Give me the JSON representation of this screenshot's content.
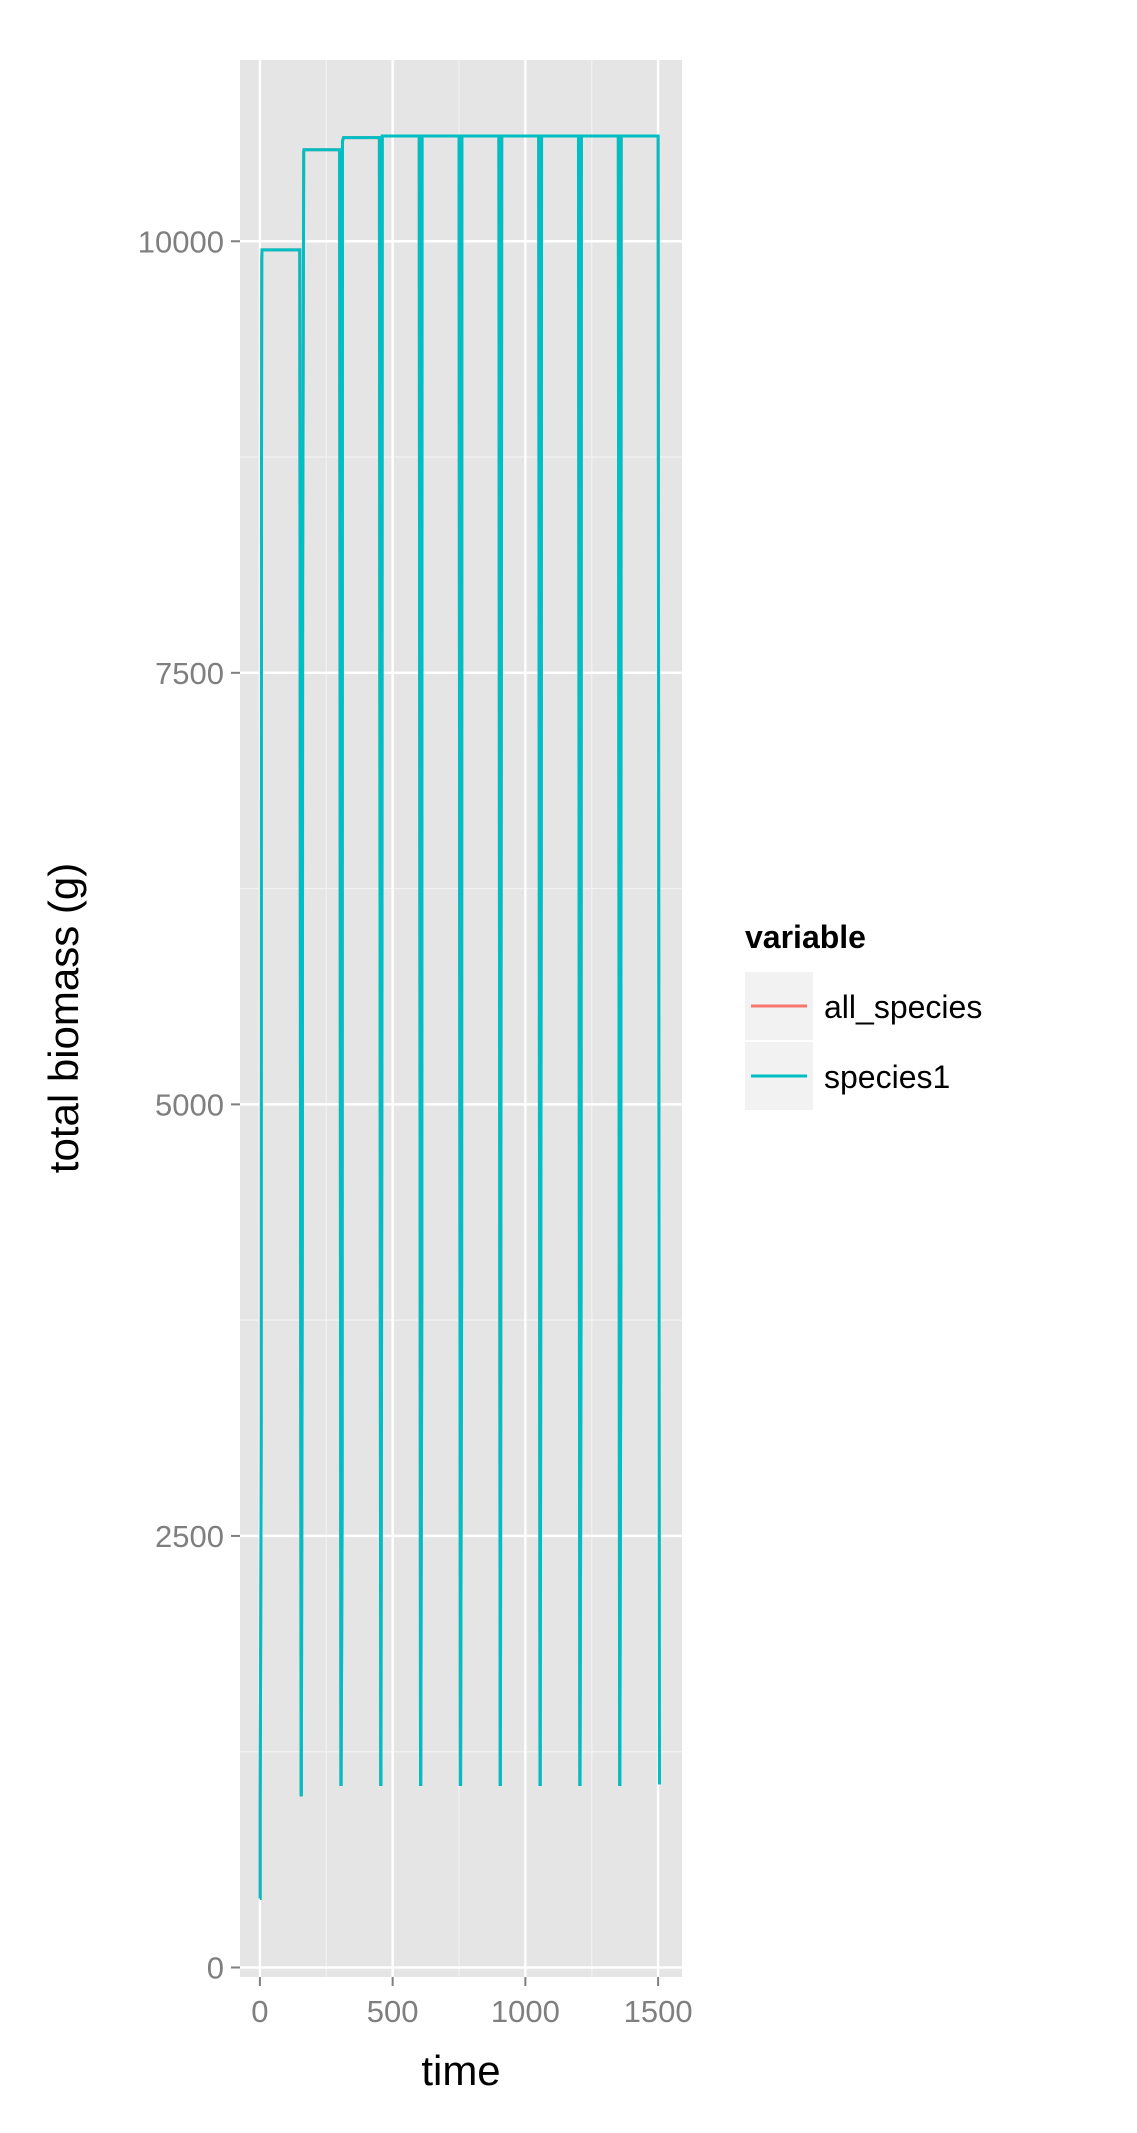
{
  "chart_data": {
    "type": "line",
    "xlabel": "time",
    "ylabel": "total biomass (g)",
    "xlim": [
      -75,
      1590
    ],
    "ylim": [
      -55,
      11050
    ],
    "x_ticks": [
      0,
      500,
      1000,
      1500
    ],
    "x_tick_labels": [
      "0",
      "500",
      "1000",
      "1500"
    ],
    "y_ticks": [
      0,
      2500,
      5000,
      7500,
      10000
    ],
    "y_tick_labels": [
      "0",
      "2500",
      "5000",
      "7500",
      "10000"
    ],
    "grid": true,
    "legend_position": "right",
    "legend": {
      "title": "variable",
      "items": [
        {
          "label": "all_species",
          "color": "#F8766D"
        },
        {
          "label": "species1",
          "color": "#00BFC4"
        }
      ]
    },
    "series": [
      {
        "name": "all_species",
        "color": "#F8766D",
        "x": [
          0,
          1,
          1,
          5,
          6,
          7,
          8,
          150,
          155,
          156,
          160,
          161,
          165,
          166,
          170,
          300,
          305,
          306,
          310,
          311,
          315,
          450,
          455,
          456,
          460,
          461,
          465,
          600,
          605,
          606,
          610,
          611,
          615,
          750,
          755,
          756,
          760,
          761,
          765,
          900,
          905,
          906,
          910,
          911,
          915,
          1050,
          1055,
          1056,
          1060,
          1061,
          1065,
          1200,
          1205,
          1206,
          1210,
          1211,
          1215,
          1350,
          1355,
          1356,
          1360,
          1361,
          1365,
          1500,
          1505
        ],
        "y": [
          400,
          400,
          900,
          3100,
          8700,
          9900,
          9950,
          9950,
          1000,
          1000,
          4300,
          8000,
          10520,
          10530,
          10530,
          10530,
          1060,
          1060,
          2700,
          10580,
          10600,
          10600,
          1060,
          1060,
          5700,
          10610,
          10610,
          10610,
          1060,
          1060,
          3900,
          10610,
          10610,
          10610,
          1060,
          1060,
          4000,
          10610,
          10610,
          10610,
          1060,
          1060,
          8200,
          10610,
          10610,
          10610,
          1060,
          1060,
          6400,
          10610,
          10610,
          10610,
          1060,
          1060,
          3900,
          10610,
          10610,
          10610,
          1060,
          1060,
          4200,
          10610,
          10610,
          10610,
          1060
        ]
      },
      {
        "name": "species1",
        "color": "#00BFC4",
        "x": [
          0,
          1,
          1,
          5,
          6,
          7,
          8,
          150,
          155,
          156,
          160,
          161,
          165,
          166,
          170,
          300,
          305,
          306,
          310,
          311,
          315,
          450,
          455,
          456,
          460,
          461,
          465,
          600,
          605,
          606,
          610,
          611,
          615,
          750,
          755,
          756,
          760,
          761,
          765,
          900,
          905,
          906,
          910,
          911,
          915,
          1050,
          1055,
          1056,
          1060,
          1061,
          1065,
          1200,
          1205,
          1206,
          1210,
          1211,
          1215,
          1350,
          1355,
          1356,
          1360,
          1361,
          1365,
          1500,
          1505
        ],
        "y": [
          400,
          400,
          900,
          3100,
          8700,
          9900,
          9950,
          9950,
          1000,
          1000,
          4300,
          8000,
          10520,
          10530,
          10530,
          10530,
          1060,
          1060,
          2700,
          10580,
          10600,
          10600,
          1060,
          1060,
          5700,
          10610,
          10610,
          10610,
          1060,
          1060,
          3900,
          10610,
          10610,
          10610,
          1060,
          1060,
          4000,
          10610,
          10610,
          10610,
          1060,
          1060,
          8200,
          10610,
          10610,
          10610,
          1060,
          1060,
          6400,
          10610,
          10610,
          10610,
          1060,
          1060,
          3900,
          10610,
          10610,
          10610,
          1060,
          1060,
          4200,
          10610,
          10610,
          10610,
          1060
        ]
      }
    ]
  }
}
